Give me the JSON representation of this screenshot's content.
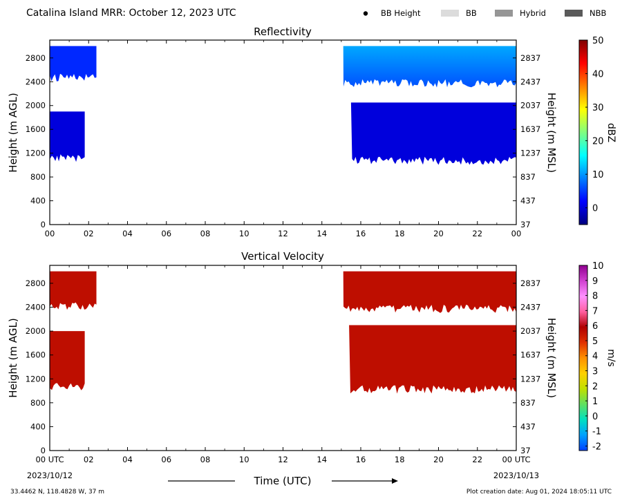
{
  "header": {
    "title": "Catalina Island MRR:  October 12, 2023 UTC",
    "legend": [
      {
        "label": "BB Height",
        "kind": "dot",
        "color": "#000000"
      },
      {
        "label": "BB",
        "kind": "box",
        "color": "#dcdcdc"
      },
      {
        "label": "Hybrid",
        "kind": "box",
        "color": "#969696"
      },
      {
        "label": "NBB",
        "kind": "box",
        "color": "#5a5a5a"
      }
    ]
  },
  "footer": {
    "location": "33.4462 N, 118.4828 W, 37 m",
    "creation": "Plot creation date: Aug 01, 2024 18:05:11 UTC",
    "xlabel": "Time (UTC)",
    "start_date": "2023/10/12",
    "end_date": "2023/10/13"
  },
  "chart_data": [
    {
      "type": "heatmap",
      "title": "Reflectivity",
      "ylabel": "Height (m AGL)",
      "ylabel_right": "Height (m MSL)",
      "x_ticks": [
        "00",
        "02",
        "04",
        "06",
        "08",
        "10",
        "12",
        "14",
        "16",
        "18",
        "20",
        "22",
        "00"
      ],
      "xlim_hours": [
        0,
        24
      ],
      "ylim": [
        0,
        3100
      ],
      "y_ticks": [
        0,
        400,
        800,
        1200,
        1600,
        2000,
        2400,
        2800
      ],
      "y_ticks_right": [
        37,
        437,
        837,
        1237,
        1637,
        2037,
        2437,
        2837
      ],
      "colorbar": {
        "label": "dBZ",
        "min": -5,
        "max": 50,
        "ticks": [
          0,
          10,
          20,
          30,
          40,
          50
        ],
        "stops": [
          "#00007f",
          "#0000ff",
          "#0080ff",
          "#00ffff",
          "#80ff80",
          "#ffff00",
          "#ff8000",
          "#ff0000",
          "#7f0000"
        ]
      },
      "regions": [
        {
          "t_start": 0.0,
          "t_end": 2.4,
          "h_bottom": 2500,
          "h_top": 3000,
          "value": 4
        },
        {
          "t_start": 0.0,
          "t_end": 1.8,
          "h_bottom": 1150,
          "h_top": 1900,
          "value": 0
        },
        {
          "t_start": 15.1,
          "t_end": 24.0,
          "h_bottom": 2400,
          "h_top": 3000,
          "value": 5
        },
        {
          "t_start": 15.5,
          "t_end": 24.0,
          "h_bottom": 1100,
          "h_top": 2050,
          "value": 0
        }
      ]
    },
    {
      "type": "heatmap",
      "title": "Vertical Velocity",
      "ylabel": "Height (m AGL)",
      "ylabel_right": "Height (m MSL)",
      "x_ticks": [
        "00 UTC",
        "02",
        "04",
        "06",
        "08",
        "10",
        "12",
        "14",
        "16",
        "18",
        "20",
        "22",
        "00 UTC"
      ],
      "xlim_hours": [
        0,
        24
      ],
      "ylim": [
        0,
        3100
      ],
      "y_ticks": [
        0,
        400,
        800,
        1200,
        1600,
        2000,
        2400,
        2800
      ],
      "y_ticks_right": [
        37,
        437,
        837,
        1237,
        1637,
        2037,
        2437,
        2837
      ],
      "colorbar": {
        "label": "m/s",
        "min": -2.3,
        "max": 10,
        "ticks": [
          -2,
          -1,
          0,
          1,
          2,
          3,
          4,
          5,
          6,
          7,
          8,
          9,
          10
        ],
        "stops": [
          "#0040ff",
          "#00a0ff",
          "#00e0c0",
          "#60e060",
          "#c0e000",
          "#ffd000",
          "#ff9000",
          "#e03000",
          "#b00000",
          "#ff60a0",
          "#ff90ff",
          "#d040d0",
          "#900090"
        ]
      },
      "regions": [
        {
          "t_start": 0.0,
          "t_end": 2.4,
          "h_bottom": 2450,
          "h_top": 3000,
          "value": 5.6
        },
        {
          "t_start": 0.0,
          "t_end": 1.8,
          "h_bottom": 1100,
          "h_top": 2000,
          "value": 5.6
        },
        {
          "t_start": 15.1,
          "t_end": 24.0,
          "h_bottom": 2400,
          "h_top": 3000,
          "value": 5.6
        },
        {
          "t_start": 15.4,
          "t_end": 24.0,
          "h_bottom": 1050,
          "h_top": 2100,
          "value": 5.6
        }
      ]
    }
  ]
}
